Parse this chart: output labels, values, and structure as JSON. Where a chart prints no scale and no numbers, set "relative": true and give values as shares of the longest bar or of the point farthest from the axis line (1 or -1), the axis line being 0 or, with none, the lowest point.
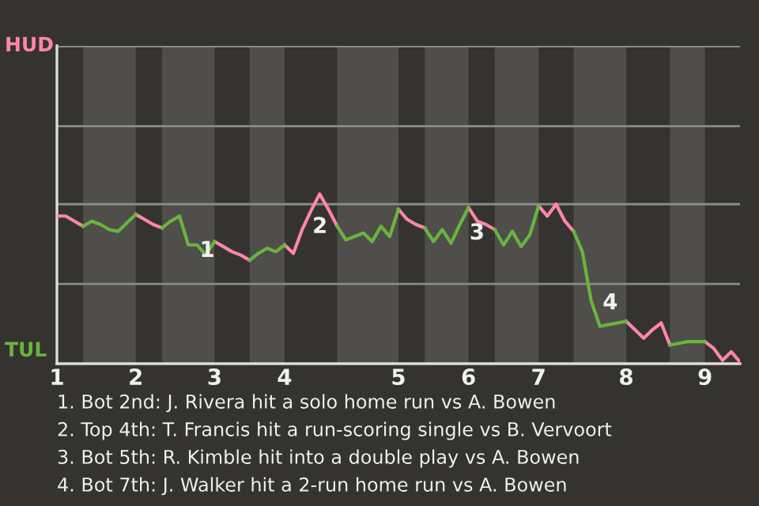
{
  "chart_data": {
    "type": "line",
    "relative": true,
    "categories": [
      "1",
      null,
      null,
      null,
      null,
      null,
      null,
      null,
      null,
      "2",
      null,
      null,
      null,
      null,
      null,
      null,
      null,
      null,
      "3",
      null,
      null,
      null,
      null,
      null,
      null,
      null,
      "4",
      null,
      null,
      null,
      null,
      null,
      null,
      null,
      null,
      null,
      null,
      null,
      null,
      "5",
      null,
      null,
      null,
      null,
      null,
      null,
      null,
      "6",
      null,
      null,
      null,
      null,
      null,
      null,
      null,
      "7",
      null,
      null,
      null,
      null,
      null,
      null,
      null,
      null,
      null,
      "8",
      null,
      null,
      null,
      null,
      null,
      null,
      null,
      null,
      "9",
      null,
      null,
      null,
      null
    ],
    "series": [
      {
        "name": "HUD",
        "color": "#ff86a8",
        "values": [
          0.87,
          0.87,
          0.84,
          0.81,
          null,
          null,
          null,
          null,
          null,
          0.88,
          0.85,
          0.82,
          0.8,
          null,
          null,
          null,
          null,
          null,
          0.72,
          0.69,
          0.66,
          0.64,
          0.61,
          null,
          null,
          null,
          0.7,
          0.65,
          0.79,
          0.9,
          1,
          0.91,
          0.81,
          null,
          null,
          null,
          null,
          null,
          null,
          0.91,
          0.85,
          0.82,
          0.8,
          null,
          null,
          null,
          null,
          0.92,
          0.84,
          0.82,
          0.79,
          null,
          null,
          null,
          null,
          0.93,
          0.87,
          0.94,
          0.84,
          0.78,
          null,
          null,
          null,
          null,
          null,
          0.25,
          0.2,
          0.15,
          0.2,
          0.24,
          0.11,
          null,
          null,
          null,
          0.13,
          0.09,
          0.02,
          0.07,
          0.01
        ]
      },
      {
        "name": "TUL",
        "color": "#6ab43e",
        "values": [
          null,
          null,
          null,
          0.81,
          0.84,
          0.82,
          0.79,
          0.78,
          0.83,
          0.88,
          null,
          null,
          0.8,
          0.84,
          0.87,
          0.7,
          0.7,
          0.64,
          0.72,
          null,
          null,
          null,
          0.61,
          0.65,
          0.68,
          0.66,
          0.7,
          null,
          null,
          null,
          null,
          null,
          0.81,
          0.73,
          0.75,
          0.77,
          0.72,
          0.81,
          0.75,
          0.91,
          null,
          null,
          0.8,
          0.72,
          0.79,
          0.71,
          0.82,
          0.92,
          null,
          null,
          0.79,
          0.7,
          0.78,
          0.69,
          0.76,
          0.93,
          null,
          null,
          null,
          0.78,
          0.66,
          0.37,
          0.22,
          0.23,
          0.24,
          0.25,
          null,
          null,
          null,
          null,
          0.11,
          0.12,
          0.13,
          0.13,
          0.13,
          null,
          null,
          null,
          null
        ]
      }
    ],
    "ref_lines": [
      {
        "axis": "y",
        "value": 0.47,
        "color": "#8a8a8a"
      },
      {
        "axis": "y",
        "value": 0.94,
        "color": "#8a8a8a"
      },
      {
        "axis": "y",
        "value": 1.4,
        "color": "#8a8a8a"
      },
      {
        "axis": "y",
        "value": 1.87,
        "color": "#8a8a8a"
      }
    ],
    "annotations": [
      "1",
      "2",
      "3",
      "4",
      "1. Bot 2nd: J. Rivera hit a solo home run vs A. Bowen",
      "2. Top 4th: T. Francis hit a run-scoring single vs B. Vervoort",
      "3. Bot 5th: R. Kimble hit into a double play vs A. Bowen",
      "4. Bot 7th: J. Walker hit a 2-run home run vs A. Bowen"
    ]
  }
}
